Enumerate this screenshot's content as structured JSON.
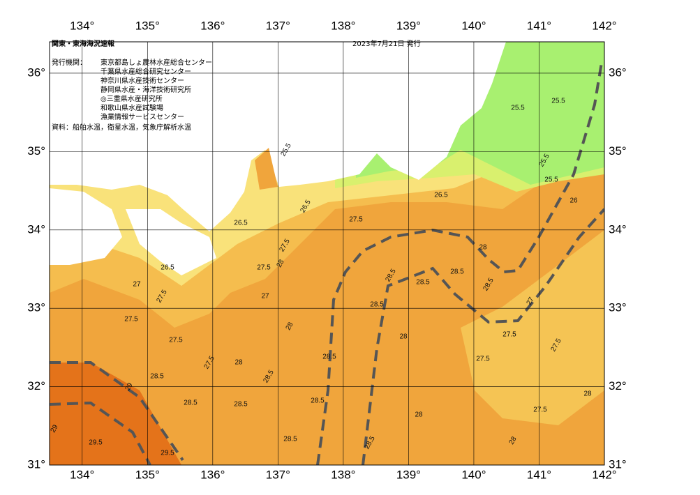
{
  "title": "関東・東海海況速報",
  "date": "2023年7月21日 発行",
  "issuer_label": "発行機関：",
  "issuers": [
    "東京都島しょ農林水産総合センター",
    "千葉県水産総合研究センター",
    "神奈川県水産技術センター",
    "静岡県水産・海洋技術研究所",
    "◎三重県水産研究所",
    "和歌山県水産試験場",
    "漁業情報サービスセンター"
  ],
  "source": "資料：船舶水温，衛星水温，気象庁解析水温",
  "lon_range": [
    133.5,
    142
  ],
  "lat_range": [
    31,
    36.4
  ],
  "lon_ticks": [
    {
      "value": 134,
      "label": "134°"
    },
    {
      "value": 135,
      "label": "135°"
    },
    {
      "value": 136,
      "label": "136°"
    },
    {
      "value": 137,
      "label": "137°"
    },
    {
      "value": 138,
      "label": "138°"
    },
    {
      "value": 139,
      "label": "139°"
    },
    {
      "value": 140,
      "label": "140°"
    },
    {
      "value": 141,
      "label": "141°"
    },
    {
      "value": 142,
      "label": "142°"
    }
  ],
  "lat_ticks": [
    {
      "value": 31,
      "label": "31°"
    },
    {
      "value": 32,
      "label": "32°"
    },
    {
      "value": 33,
      "label": "33°"
    },
    {
      "value": 34,
      "label": "34°"
    },
    {
      "value": 35,
      "label": "35°"
    },
    {
      "value": 36,
      "label": "36°"
    }
  ],
  "contour_labels": [
    "25.5",
    "25.5",
    "25.5",
    "25.5",
    "25.5",
    "26.5",
    "26.5",
    "26.5",
    "27.5",
    "27.5",
    "27.5",
    "27",
    "27.5",
    "27.5",
    "27.5",
    "28",
    "28",
    "28.5",
    "28.5",
    "28.5",
    "28.5",
    "28.5",
    "28.5",
    "28.5",
    "28.5",
    "28.5",
    "28.5",
    "29",
    "29.5",
    "29.5",
    "29",
    "27.5",
    "27.5",
    "27.5",
    "27.5",
    "28",
    "28",
    "28",
    "26",
    "27",
    "28",
    "28.5",
    "28.5",
    "28.5",
    "28",
    "27.5",
    "26.5",
    "27",
    "28"
  ]
}
